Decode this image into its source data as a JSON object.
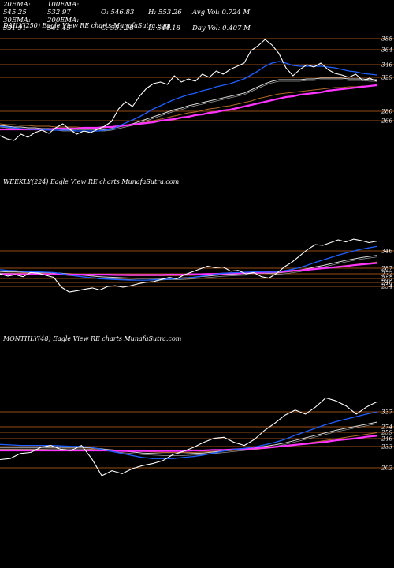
{
  "stats": [
    [
      "20EMA: 545.25",
      "100EMA: 532.97",
      "O: 546.83",
      "H: 553.26",
      "Avg Vol: 0.724  M"
    ],
    [
      "30EMA: 531.91",
      "200EMA: 541.45",
      "C: 551.28",
      "L: 544.18",
      "Day Vol: 0.407 M"
    ]
  ],
  "colors": {
    "background": "#000000",
    "price": "#ffffff",
    "ema_short": "#1f5fff",
    "ema_mid": "#d8d8d8",
    "ema_long": "#b06a2a",
    "ema_200": "#ff33ff",
    "support_lines": "#c8641e"
  },
  "chart_data": [
    {
      "type": "line",
      "title": "DAILY(250) Eagle  View  RE charts MunafaSutra.com",
      "ylabels": [
        "388",
        "364",
        "346",
        "329",
        "280",
        "266"
      ],
      "series": [
        {
          "role": "price",
          "color": "#ffffff",
          "values": [
            268,
            264,
            262,
            270,
            266,
            272,
            275,
            271,
            278,
            283,
            276,
            270,
            274,
            272,
            276,
            280,
            286,
            302,
            311,
            305,
            318,
            328,
            334,
            336,
            333,
            344,
            336,
            340,
            337,
            346,
            342,
            350,
            346,
            352,
            356,
            360,
            376,
            382,
            390,
            383,
            372,
            354,
            344,
            352,
            358,
            355,
            360,
            352,
            347,
            345,
            342,
            346,
            338,
            341,
            337
          ]
        },
        {
          "role": "ema_short",
          "color": "#1f5fff",
          "values": [
            280,
            279,
            278,
            277,
            276,
            276,
            276,
            275,
            275,
            275,
            275,
            274,
            274,
            274,
            274,
            275,
            276,
            280,
            284,
            288,
            292,
            297,
            302,
            306,
            310,
            314,
            317,
            320,
            322,
            325,
            327,
            330,
            332,
            334,
            337,
            340,
            345,
            350,
            356,
            360,
            362,
            360,
            357,
            356,
            356,
            356,
            356,
            355,
            354,
            352,
            350,
            349,
            347,
            346,
            345
          ]
        },
        {
          "role": "ema_mid",
          "color": "#d8d8d8",
          "values": [
            281,
            280,
            279,
            279,
            278,
            278,
            277,
            277,
            277,
            276,
            276,
            276,
            276,
            276,
            276,
            276,
            277,
            279,
            281,
            283,
            286,
            289,
            292,
            295,
            298,
            301,
            303,
            306,
            308,
            310,
            312,
            314,
            316,
            318,
            320,
            322,
            326,
            330,
            334,
            337,
            339,
            339,
            339,
            339,
            340,
            340,
            341,
            341,
            341,
            341,
            340,
            340,
            340,
            339,
            339
          ]
        },
        {
          "role": "ema_long",
          "color": "#b06a2a",
          "values": [
            283,
            282,
            282,
            281,
            281,
            280,
            280,
            280,
            279,
            279,
            279,
            279,
            278,
            278,
            278,
            278,
            279,
            280,
            281,
            282,
            284,
            285,
            287,
            289,
            291,
            293,
            295,
            297,
            298,
            300,
            302,
            303,
            305,
            306,
            308,
            310,
            312,
            315,
            317,
            319,
            321,
            322,
            323,
            324,
            325,
            326,
            327,
            328,
            329,
            329,
            330,
            330,
            331,
            331,
            332
          ]
        },
        {
          "role": "ema_200",
          "color": "#ff33ff",
          "values": [
            276,
            276,
            276,
            276,
            276,
            276,
            276,
            276,
            277,
            277,
            277,
            277,
            278,
            278,
            278,
            279,
            279,
            280,
            281,
            282,
            283,
            284,
            285,
            287,
            288,
            289,
            291,
            292,
            294,
            295,
            297,
            298,
            300,
            301,
            303,
            305,
            307,
            309,
            311,
            313,
            315,
            317,
            318,
            320,
            321,
            322,
            323,
            325,
            326,
            327,
            328,
            329,
            330,
            331,
            332
          ]
        }
      ]
    },
    {
      "type": "line",
      "title": "WEEKLY(224) Eagle  View  RE charts MunafaSutra.com",
      "ylabels": [
        "346",
        "287",
        "272",
        "255",
        "240",
        "234"
      ],
      "series": [
        {
          "role": "price",
          "color": "#ffffff",
          "values": [
            248,
            242,
            246,
            240,
            252,
            250,
            244,
            238,
            210,
            196,
            200,
            204,
            208,
            202,
            212,
            214,
            210,
            214,
            220,
            224,
            226,
            232,
            238,
            234,
            246,
            254,
            262,
            270,
            266,
            268,
            256,
            258,
            248,
            252,
            240,
            236,
            250,
            268,
            282,
            300,
            318,
            332,
            330,
            338,
            346,
            340,
            348,
            344,
            338,
            342
          ]
        },
        {
          "role": "ema_short",
          "color": "#1f5fff",
          "values": [
            260,
            258,
            257,
            255,
            254,
            254,
            253,
            252,
            249,
            245,
            242,
            239,
            237,
            234,
            233,
            232,
            231,
            230,
            230,
            230,
            231,
            232,
            233,
            234,
            236,
            238,
            241,
            244,
            247,
            250,
            251,
            252,
            253,
            254,
            254,
            253,
            254,
            257,
            261,
            266,
            273,
            281,
            288,
            295,
            302,
            308,
            314,
            319,
            323,
            327
          ]
        },
        {
          "role": "ema_mid",
          "color": "#d8d8d8",
          "values": [
            255,
            254,
            254,
            253,
            253,
            252,
            252,
            251,
            250,
            248,
            246,
            244,
            242,
            240,
            239,
            238,
            237,
            236,
            235,
            235,
            235,
            235,
            236,
            236,
            237,
            238,
            240,
            242,
            244,
            246,
            247,
            248,
            249,
            250,
            250,
            250,
            251,
            253,
            256,
            259,
            263,
            268,
            272,
            277,
            282,
            287,
            291,
            295,
            298,
            301
          ]
        },
        {
          "role": "ema_long",
          "color": "#b06a2a",
          "values": [
            250,
            250,
            250,
            250,
            250,
            250,
            250,
            250,
            249,
            249,
            248,
            247,
            246,
            245,
            245,
            244,
            244,
            243,
            243,
            243,
            243,
            243,
            243,
            243,
            244,
            244,
            245,
            246,
            247,
            248,
            249,
            250,
            250,
            251,
            251,
            252,
            252,
            253,
            255,
            257,
            259,
            261,
            264,
            266,
            269,
            272,
            274,
            277,
            279,
            282
          ]
        },
        {
          "role": "ema_200",
          "color": "#ff33ff",
          "values": [
            247,
            247,
            247,
            247,
            247,
            247,
            247,
            247,
            247,
            246,
            246,
            246,
            246,
            246,
            246,
            245,
            245,
            245,
            245,
            245,
            245,
            245,
            246,
            246,
            246,
            247,
            247,
            248,
            248,
            249,
            250,
            250,
            251,
            252,
            252,
            253,
            254,
            255,
            257,
            258,
            260,
            262,
            264,
            266,
            268,
            270,
            273,
            275,
            277,
            279
          ]
        }
      ]
    },
    {
      "type": "line",
      "title": "MONTHLY(48) Eagle  View  RE charts MunafaSutra.com",
      "ylabels": [
        "337",
        "274",
        "259",
        "246",
        "233",
        "202"
      ],
      "series": [
        {
          "role": "price",
          "color": "#ffffff",
          "values": [
            228,
            230,
            240,
            242,
            252,
            256,
            248,
            246,
            256,
            230,
            196,
            206,
            200,
            210,
            216,
            220,
            226,
            238,
            244,
            252,
            262,
            270,
            272,
            262,
            256,
            268,
            286,
            300,
            316,
            326,
            318,
            332,
            350,
            344,
            334,
            318,
            332,
            342
          ]
        },
        {
          "role": "ema_short",
          "color": "#1f5fff",
          "values": [
            258,
            257,
            256,
            256,
            256,
            256,
            255,
            254,
            254,
            252,
            248,
            244,
            240,
            236,
            232,
            230,
            230,
            230,
            232,
            234,
            237,
            241,
            245,
            248,
            250,
            253,
            257,
            262,
            268,
            276,
            283,
            290,
            297,
            303,
            308,
            313,
            318,
            322
          ]
        },
        {
          "role": "ema_mid",
          "color": "#d8d8d8",
          "values": [
            252,
            252,
            252,
            252,
            252,
            252,
            252,
            252,
            252,
            251,
            249,
            247,
            245,
            243,
            241,
            240,
            239,
            239,
            239,
            240,
            241,
            243,
            245,
            247,
            249,
            251,
            254,
            257,
            261,
            266,
            271,
            276,
            281,
            286,
            290,
            294,
            298,
            302
          ]
        },
        {
          "role": "ema_long",
          "color": "#b06a2a",
          "values": [
            248,
            248,
            248,
            248,
            248,
            249,
            249,
            249,
            249,
            249,
            248,
            247,
            246,
            245,
            244,
            243,
            242,
            242,
            242,
            242,
            243,
            244,
            245,
            246,
            247,
            248,
            250,
            252,
            254,
            257,
            260,
            263,
            266,
            269,
            272,
            275,
            278,
            281
          ]
        },
        {
          "role": "ema_200",
          "color": "#ff33ff",
          "values": [
            246,
            246,
            246,
            246,
            246,
            246,
            246,
            246,
            246,
            246,
            246,
            246,
            245,
            245,
            245,
            245,
            245,
            245,
            245,
            246,
            246,
            247,
            247,
            248,
            249,
            250,
            251,
            253,
            255,
            257,
            259,
            261,
            263,
            266,
            268,
            270,
            273,
            275
          ]
        }
      ]
    }
  ]
}
